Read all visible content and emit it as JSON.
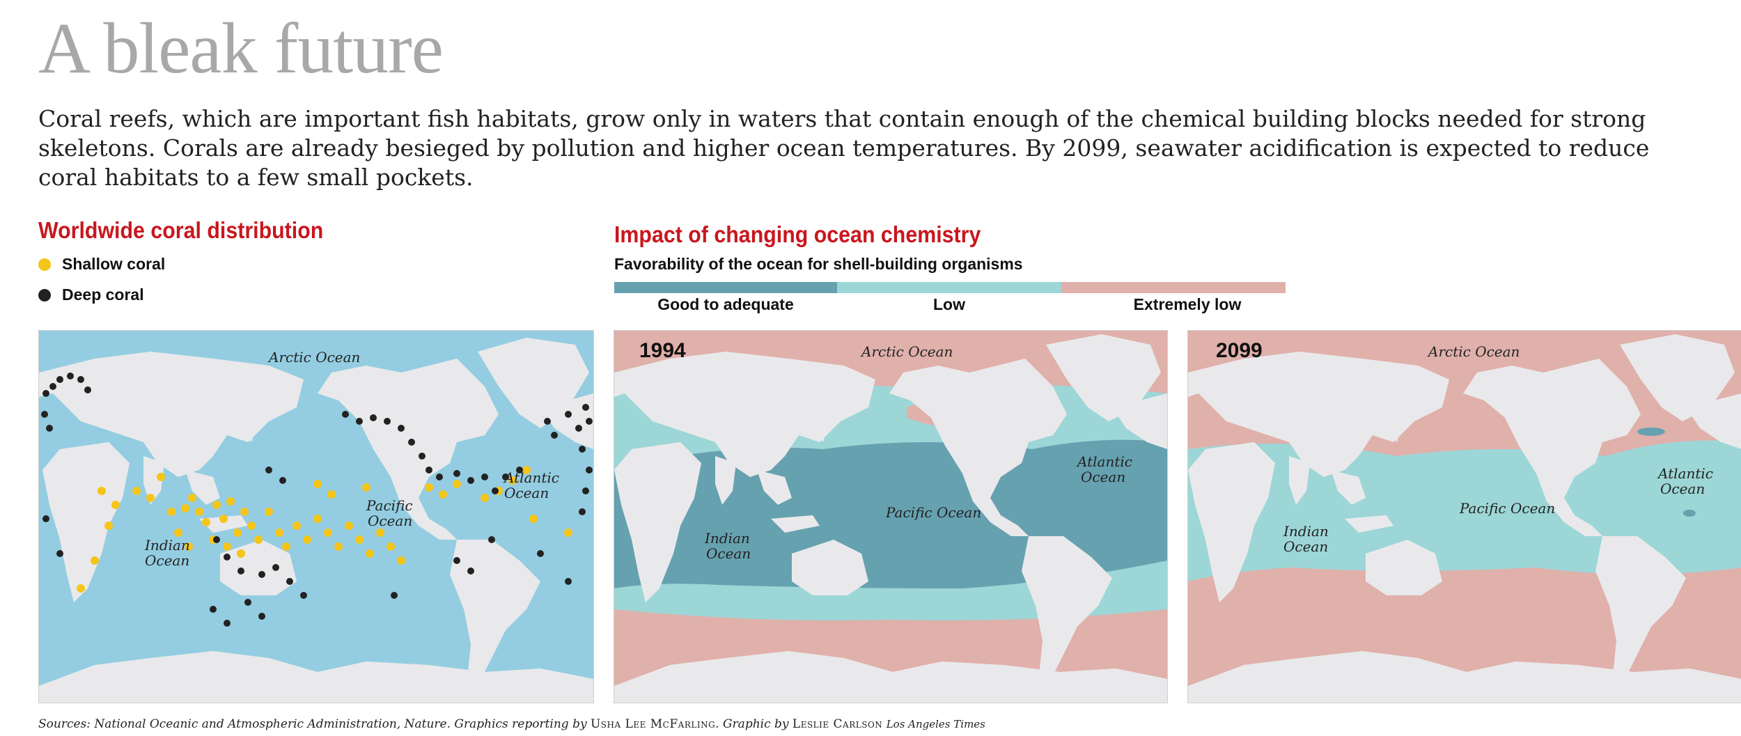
{
  "header": {
    "title": "A bleak future",
    "intro": "Coral reefs, which are important fish habitats, grow only in waters that contain enough of the chemical building blocks needed for strong skeletons. Corals are already besieged by pollution and higher ocean temperatures. By 2099, seawater acidification is expected to reduce coral habitats to a few small pockets."
  },
  "coral_section": {
    "title": "Worldwide coral distribution",
    "legend": [
      {
        "label": "Shallow coral",
        "color": "#f5c518"
      },
      {
        "label": "Deep coral",
        "color": "#222222"
      }
    ],
    "map_labels": {
      "arctic": "Arctic Ocean",
      "pacific_line1": "Pacific",
      "pacific_line2": "Ocean",
      "atlantic_line1": "Atlantic",
      "atlantic_line2": "Ocean",
      "indian_line1": "Indian",
      "indian_line2": "Ocean"
    }
  },
  "chemistry_section": {
    "title": "Impact of changing ocean chemistry",
    "subtitle": "Favorability of the ocean for shell-building organisms",
    "scale": [
      {
        "label": "Good to adequate",
        "color": "#66a1b0"
      },
      {
        "label": "Low",
        "color": "#9dd6d6"
      },
      {
        "label": "Extremely low",
        "color": "#e0b0ab"
      }
    ],
    "map_1994": {
      "year": "1994",
      "arctic": "Arctic Ocean",
      "atlantic_line1": "Atlantic",
      "atlantic_line2": "Ocean",
      "pacific": "Pacific Ocean",
      "indian_line1": "Indian",
      "indian_line2": "Ocean"
    },
    "map_2099": {
      "year": "2099",
      "arctic": "Arctic Ocean",
      "atlantic_line1": "Atlantic",
      "atlantic_line2": "Ocean",
      "pacific": "Pacific Ocean",
      "indian_line1": "Indian",
      "indian_line2": "Ocean"
    }
  },
  "colors": {
    "coral_ocean": "#94cde1",
    "land": "#e9e9eb",
    "good": "#66a1b0",
    "low": "#9dd6d6",
    "extremely_low": "#e0b0ab",
    "accent_red": "#c8171e"
  },
  "footer": {
    "sources_prefix": "Sources: National Oceanic and Atmospheric Administration, Nature. Graphics reporting by ",
    "reporter": "Usha Lee McFarling",
    "graphic_by": ". Graphic by ",
    "artist": "Leslie Carlson",
    "publication": "Los Angeles Times"
  }
}
